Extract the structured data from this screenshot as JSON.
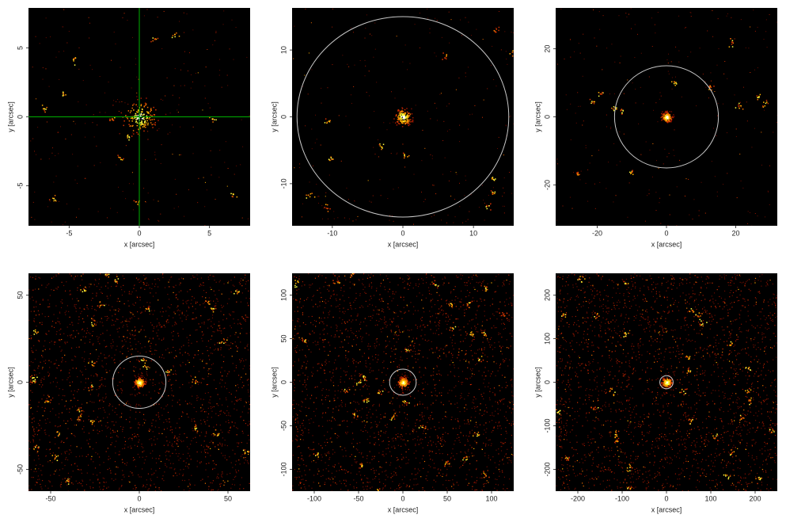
{
  "chart_data": [
    {
      "type": "image",
      "xlabel": "x [arcsec]",
      "ylabel": "y [arcsec]",
      "xlim": [
        -7.9,
        7.9
      ],
      "ylim": [
        -7.9,
        7.9
      ],
      "xticks": [
        -5,
        0,
        5
      ],
      "yticks": [
        -5,
        0,
        5
      ],
      "cmap": "hot",
      "crosshair": {
        "x": 0,
        "y": 0,
        "color": "#00b000"
      }
    },
    {
      "type": "image",
      "xlabel": "x [arcsec]",
      "ylabel": "y [arcsec]",
      "xlim": [
        -15.7,
        15.7
      ],
      "ylim": [
        -16.3,
        16.3
      ],
      "xticks": [
        -10,
        0,
        10
      ],
      "yticks": [
        -10,
        0,
        10
      ],
      "cmap": "hot",
      "circle": {
        "x": 0,
        "y": 0,
        "r": 15,
        "color": "#c8c8c8"
      }
    },
    {
      "type": "image",
      "xlabel": "x [arcsec]",
      "ylabel": "y [arcsec]",
      "xlim": [
        -32,
        32
      ],
      "ylim": [
        -32,
        32
      ],
      "xticks": [
        -20,
        0,
        20
      ],
      "yticks": [
        -20,
        0,
        20
      ],
      "cmap": "hot",
      "circle": {
        "x": 0,
        "y": 0,
        "r": 15,
        "color": "#c8c8c8"
      }
    },
    {
      "type": "image",
      "xlabel": "x [arcsec]",
      "ylabel": "y [arcsec]",
      "xlim": [
        -62.5,
        62.5
      ],
      "ylim": [
        -62.5,
        62.5
      ],
      "xticks": [
        -50,
        0,
        50
      ],
      "yticks": [
        -50,
        0,
        50
      ],
      "cmap": "hot",
      "circle": {
        "x": 0,
        "y": 0,
        "r": 15,
        "color": "#c8c8c8"
      }
    },
    {
      "type": "image",
      "xlabel": "x [arcsec]",
      "ylabel": "y [arcsec]",
      "xlim": [
        -125,
        125
      ],
      "ylim": [
        -125,
        125
      ],
      "xticks": [
        -100,
        -50,
        0,
        50,
        100
      ],
      "yticks": [
        -100,
        -50,
        0,
        50,
        100
      ],
      "cmap": "hot",
      "circle": {
        "x": 0,
        "y": 0,
        "r": 15,
        "color": "#c8c8c8"
      }
    },
    {
      "type": "image",
      "xlabel": "x [arcsec]",
      "ylabel": "y [arcsec]",
      "xlim": [
        -250,
        250
      ],
      "ylim": [
        -250,
        250
      ],
      "xticks": [
        -200,
        -100,
        0,
        100,
        200
      ],
      "yticks": [
        -200,
        -100,
        0,
        100,
        200
      ],
      "cmap": "hot",
      "circle": {
        "x": 0,
        "y": 0,
        "r": 15,
        "color": "#c8c8c8"
      }
    }
  ]
}
